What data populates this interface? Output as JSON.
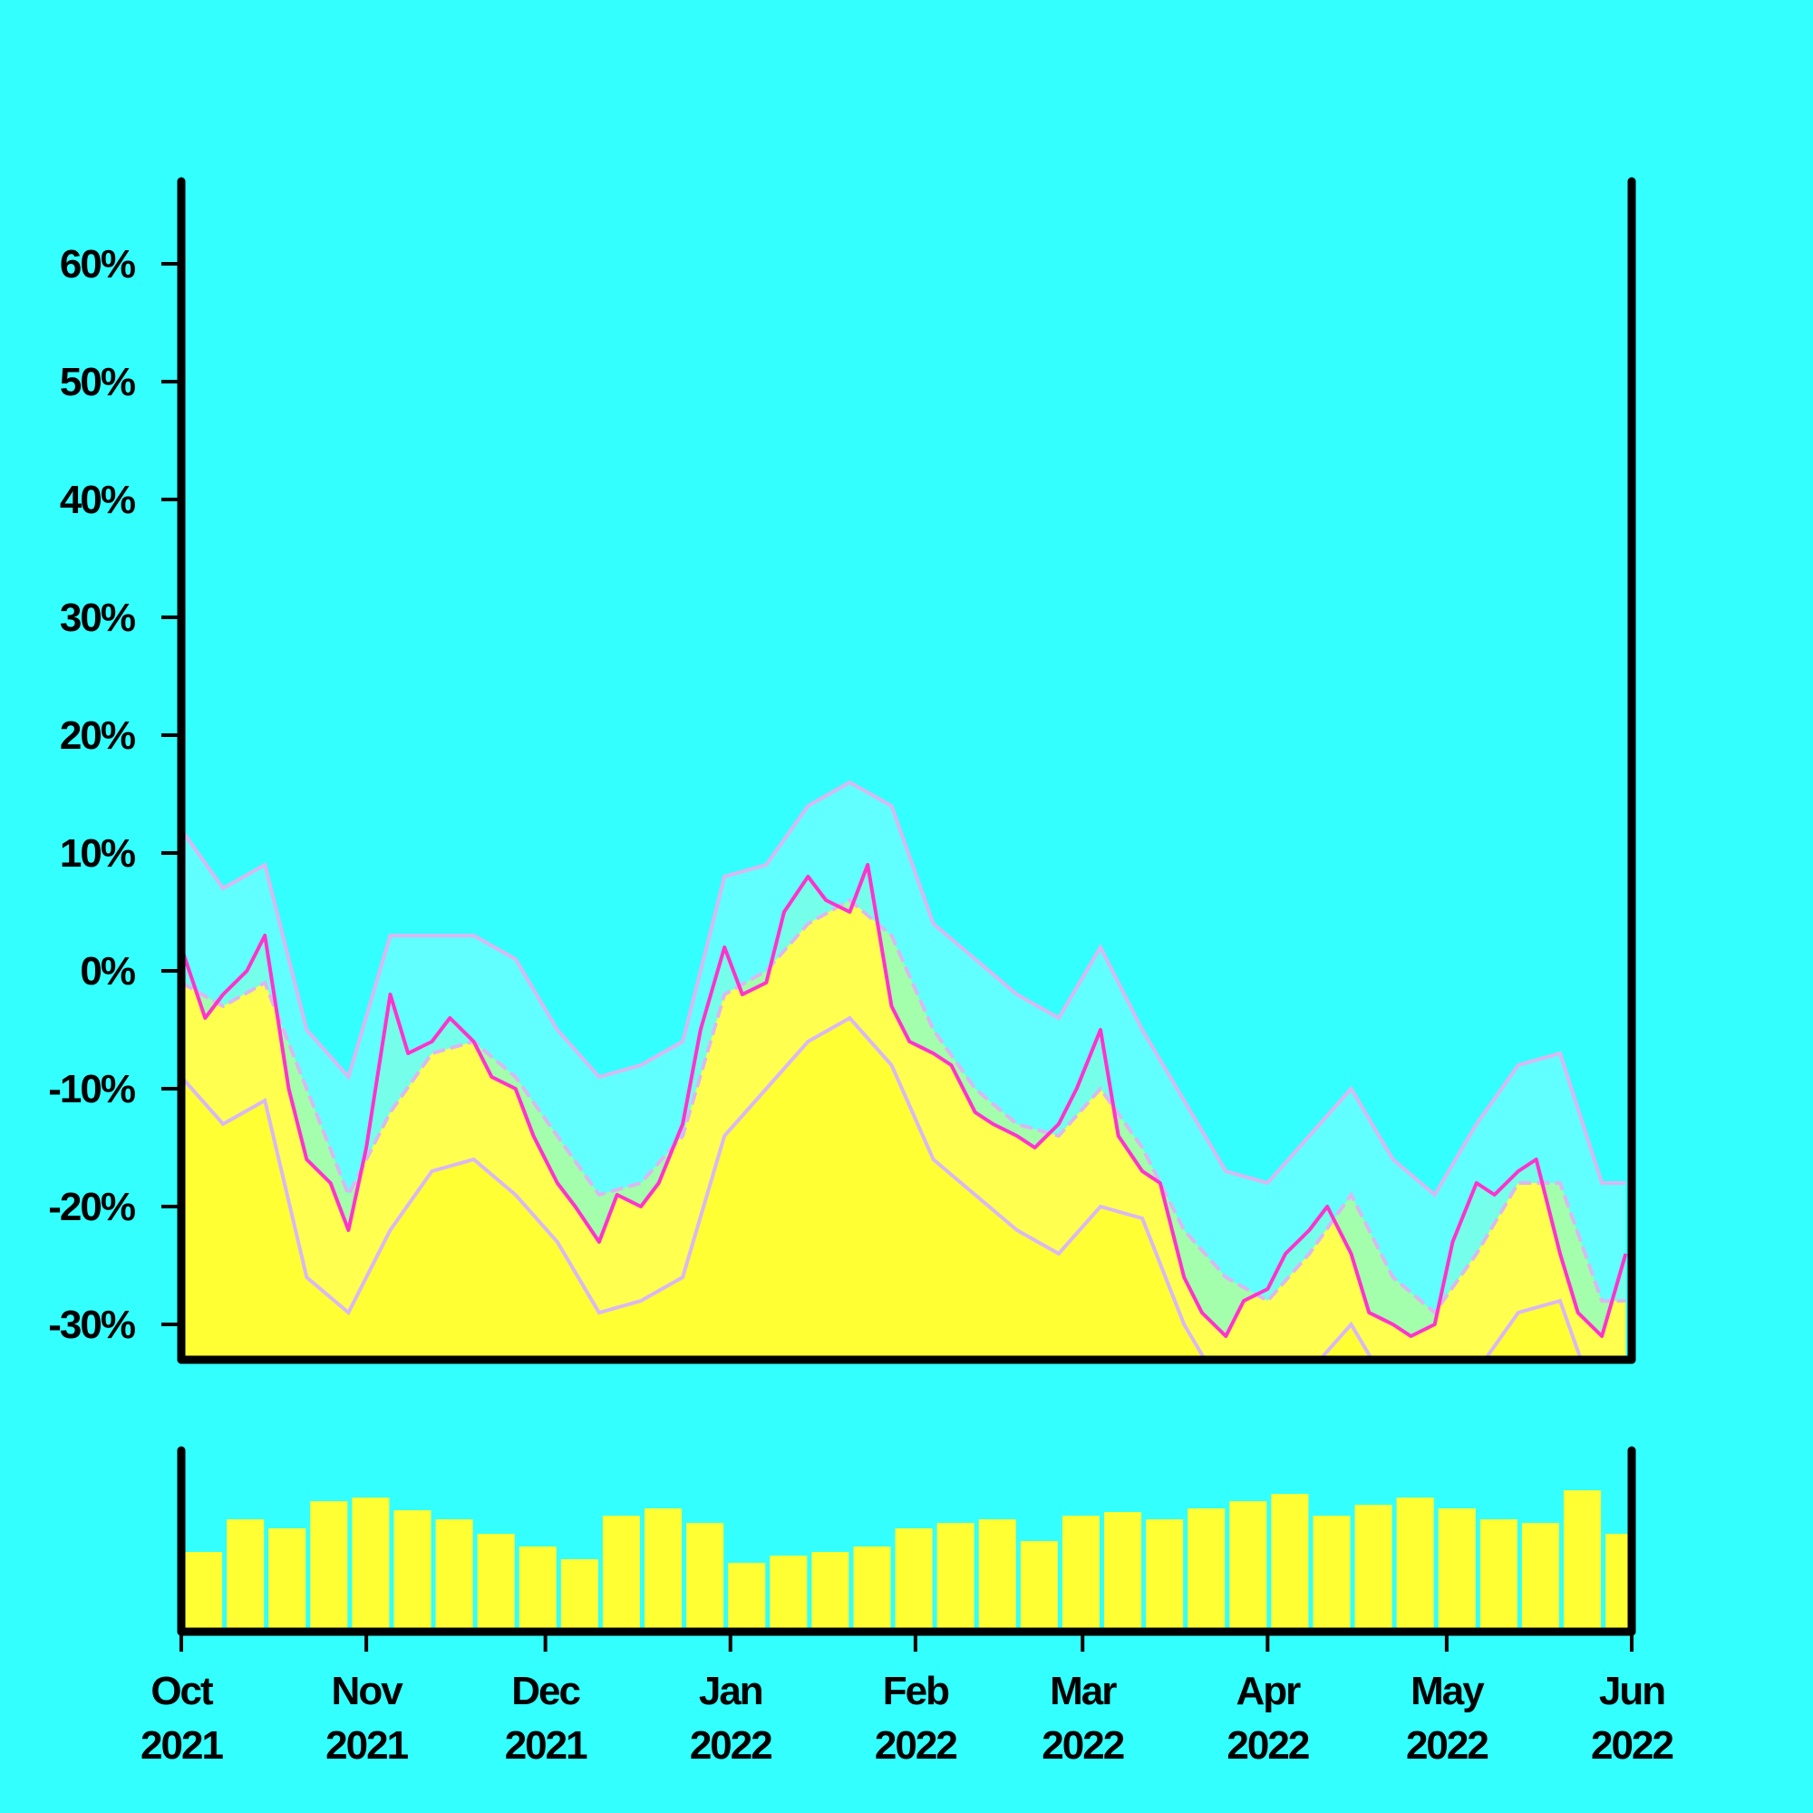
{
  "colors": {
    "background": "#33ffff",
    "axis": "#000000",
    "price_line": "#ff33cc",
    "band_lines": "#d9b8f2",
    "area_fill": "#ffff33",
    "area_band_fill": "#ffff66",
    "band_fill": "#66ffff",
    "volume_bars": "#ffff33"
  },
  "chart_data": [
    {
      "type": "area",
      "title": "",
      "xlabel": "",
      "ylabel": "",
      "grid": false,
      "y_unit": "%",
      "ylim": [
        -33,
        67
      ],
      "yticks": [
        60,
        50,
        40,
        30,
        20,
        10,
        0,
        -10,
        -20,
        -30
      ],
      "ytick_labels": [
        "60%",
        "50%",
        "40%",
        "30%",
        "20%",
        "10%",
        "0%",
        "-10%",
        "-20%",
        "-30%"
      ],
      "xlim": [
        "2021-10-01",
        "2022-06-01"
      ],
      "x_ticks": [
        {
          "date": "2021-10-01",
          "month": "Oct",
          "year": "2021"
        },
        {
          "date": "2021-11-01",
          "month": "Nov",
          "year": "2021"
        },
        {
          "date": "2021-12-01",
          "month": "Dec",
          "year": "2021"
        },
        {
          "date": "2022-01-01",
          "month": "Jan",
          "year": "2022"
        },
        {
          "date": "2022-02-01",
          "month": "Feb",
          "year": "2022"
        },
        {
          "date": "2022-03-01",
          "month": "Mar",
          "year": "2022"
        },
        {
          "date": "2022-04-01",
          "month": "Apr",
          "year": "2022"
        },
        {
          "date": "2022-05-01",
          "month": "May",
          "year": "2022"
        },
        {
          "date": "2022-06-01",
          "month": "Jun",
          "year": "2022"
        }
      ],
      "series": [
        {
          "role": "value",
          "points": [
            [
              "2021-10-01",
              2
            ],
            [
              "2021-10-05",
              -4
            ],
            [
              "2021-10-08",
              -2
            ],
            [
              "2021-10-12",
              0
            ],
            [
              "2021-10-15",
              3
            ],
            [
              "2021-10-19",
              -10
            ],
            [
              "2021-10-22",
              -16
            ],
            [
              "2021-10-26",
              -18
            ],
            [
              "2021-10-29",
              -22
            ],
            [
              "2021-11-01",
              -15
            ],
            [
              "2021-11-05",
              -2
            ],
            [
              "2021-11-08",
              -7
            ],
            [
              "2021-11-12",
              -6
            ],
            [
              "2021-11-15",
              -4
            ],
            [
              "2021-11-19",
              -6
            ],
            [
              "2021-11-22",
              -9
            ],
            [
              "2021-11-26",
              -10
            ],
            [
              "2021-11-29",
              -14
            ],
            [
              "2021-12-03",
              -18
            ],
            [
              "2021-12-06",
              -20
            ],
            [
              "2021-12-10",
              -23
            ],
            [
              "2021-12-13",
              -19
            ],
            [
              "2021-12-17",
              -20
            ],
            [
              "2021-12-20",
              -18
            ],
            [
              "2021-12-24",
              -13
            ],
            [
              "2021-12-27",
              -5
            ],
            [
              "2021-12-31",
              2
            ],
            [
              "2022-01-03",
              -2
            ],
            [
              "2022-01-07",
              -1
            ],
            [
              "2022-01-10",
              5
            ],
            [
              "2022-01-14",
              8
            ],
            [
              "2022-01-17",
              6
            ],
            [
              "2022-01-21",
              5
            ],
            [
              "2022-01-24",
              9
            ],
            [
              "2022-01-28",
              -3
            ],
            [
              "2022-01-31",
              -6
            ],
            [
              "2022-02-04",
              -7
            ],
            [
              "2022-02-07",
              -8
            ],
            [
              "2022-02-11",
              -12
            ],
            [
              "2022-02-14",
              -13
            ],
            [
              "2022-02-18",
              -14
            ],
            [
              "2022-02-21",
              -15
            ],
            [
              "2022-02-25",
              -13
            ],
            [
              "2022-02-28",
              -10
            ],
            [
              "2022-03-04",
              -5
            ],
            [
              "2022-03-07",
              -14
            ],
            [
              "2022-03-11",
              -17
            ],
            [
              "2022-03-14",
              -18
            ],
            [
              "2022-03-18",
              -26
            ],
            [
              "2022-03-21",
              -29
            ],
            [
              "2022-03-25",
              -31
            ],
            [
              "2022-03-28",
              -28
            ],
            [
              "2022-04-01",
              -27
            ],
            [
              "2022-04-04",
              -24
            ],
            [
              "2022-04-08",
              -22
            ],
            [
              "2022-04-11",
              -20
            ],
            [
              "2022-04-15",
              -24
            ],
            [
              "2022-04-18",
              -29
            ],
            [
              "2022-04-22",
              -30
            ],
            [
              "2022-04-25",
              -31
            ],
            [
              "2022-04-29",
              -30
            ],
            [
              "2022-05-02",
              -23
            ],
            [
              "2022-05-06",
              -18
            ],
            [
              "2022-05-09",
              -19
            ],
            [
              "2022-05-13",
              -17
            ],
            [
              "2022-05-16",
              -16
            ],
            [
              "2022-05-20",
              -24
            ],
            [
              "2022-05-23",
              -29
            ],
            [
              "2022-05-27",
              -31
            ],
            [
              "2022-05-31",
              -24
            ]
          ]
        },
        {
          "role": "moving-average",
          "points": [
            [
              "2021-10-01",
              -1
            ],
            [
              "2021-10-08",
              -3
            ],
            [
              "2021-10-15",
              -1
            ],
            [
              "2021-10-22",
              -10
            ],
            [
              "2021-10-29",
              -19
            ],
            [
              "2021-11-05",
              -12
            ],
            [
              "2021-11-12",
              -7
            ],
            [
              "2021-11-19",
              -6
            ],
            [
              "2021-11-26",
              -9
            ],
            [
              "2021-12-03",
              -14
            ],
            [
              "2021-12-10",
              -19
            ],
            [
              "2021-12-17",
              -18
            ],
            [
              "2021-12-24",
              -14
            ],
            [
              "2021-12-31",
              -2
            ],
            [
              "2022-01-07",
              0
            ],
            [
              "2022-01-14",
              4
            ],
            [
              "2022-01-21",
              6
            ],
            [
              "2022-01-28",
              3
            ],
            [
              "2022-02-04",
              -5
            ],
            [
              "2022-02-11",
              -10
            ],
            [
              "2022-02-18",
              -13
            ],
            [
              "2022-02-25",
              -14
            ],
            [
              "2022-03-04",
              -10
            ],
            [
              "2022-03-11",
              -15
            ],
            [
              "2022-03-18",
              -22
            ],
            [
              "2022-03-25",
              -26
            ],
            [
              "2022-04-01",
              -28
            ],
            [
              "2022-04-08",
              -24
            ],
            [
              "2022-04-15",
              -19
            ],
            [
              "2022-04-22",
              -26
            ],
            [
              "2022-04-29",
              -29
            ],
            [
              "2022-05-06",
              -24
            ],
            [
              "2022-05-13",
              -18
            ],
            [
              "2022-05-20",
              -18
            ],
            [
              "2022-05-27",
              -28
            ],
            [
              "2022-05-31",
              -28
            ]
          ]
        },
        {
          "role": "upper-band",
          "points": [
            [
              "2021-10-01",
              12
            ],
            [
              "2021-10-08",
              7
            ],
            [
              "2021-10-15",
              9
            ],
            [
              "2021-10-22",
              -5
            ],
            [
              "2021-10-29",
              -9
            ],
            [
              "2021-11-05",
              3
            ],
            [
              "2021-11-12",
              3
            ],
            [
              "2021-11-19",
              3
            ],
            [
              "2021-11-26",
              1
            ],
            [
              "2021-12-03",
              -5
            ],
            [
              "2021-12-10",
              -9
            ],
            [
              "2021-12-17",
              -8
            ],
            [
              "2021-12-24",
              -6
            ],
            [
              "2021-12-31",
              8
            ],
            [
              "2022-01-07",
              9
            ],
            [
              "2022-01-14",
              14
            ],
            [
              "2022-01-21",
              16
            ],
            [
              "2022-01-28",
              14
            ],
            [
              "2022-02-04",
              4
            ],
            [
              "2022-02-11",
              1
            ],
            [
              "2022-02-18",
              -2
            ],
            [
              "2022-02-25",
              -4
            ],
            [
              "2022-03-04",
              2
            ],
            [
              "2022-03-11",
              -5
            ],
            [
              "2022-03-18",
              -11
            ],
            [
              "2022-03-25",
              -17
            ],
            [
              "2022-04-01",
              -18
            ],
            [
              "2022-04-08",
              -14
            ],
            [
              "2022-04-15",
              -10
            ],
            [
              "2022-04-22",
              -16
            ],
            [
              "2022-04-29",
              -19
            ],
            [
              "2022-05-06",
              -13
            ],
            [
              "2022-05-13",
              -8
            ],
            [
              "2022-05-20",
              -7
            ],
            [
              "2022-05-27",
              -18
            ],
            [
              "2022-05-31",
              -18
            ]
          ]
        },
        {
          "role": "lower-band",
          "points": [
            [
              "2021-10-01",
              -9
            ],
            [
              "2021-10-08",
              -13
            ],
            [
              "2021-10-15",
              -11
            ],
            [
              "2021-10-22",
              -26
            ],
            [
              "2021-10-29",
              -29
            ],
            [
              "2021-11-05",
              -22
            ],
            [
              "2021-11-12",
              -17
            ],
            [
              "2021-11-19",
              -16
            ],
            [
              "2021-11-26",
              -19
            ],
            [
              "2021-12-03",
              -23
            ],
            [
              "2021-12-10",
              -29
            ],
            [
              "2021-12-17",
              -28
            ],
            [
              "2021-12-24",
              -26
            ],
            [
              "2021-12-31",
              -14
            ],
            [
              "2022-01-07",
              -10
            ],
            [
              "2022-01-14",
              -6
            ],
            [
              "2022-01-21",
              -4
            ],
            [
              "2022-01-28",
              -8
            ],
            [
              "2022-02-04",
              -16
            ],
            [
              "2022-02-11",
              -19
            ],
            [
              "2022-02-18",
              -22
            ],
            [
              "2022-02-25",
              -24
            ],
            [
              "2022-03-04",
              -20
            ],
            [
              "2022-03-11",
              -21
            ],
            [
              "2022-03-18",
              -30
            ],
            [
              "2022-03-25",
              -36
            ],
            [
              "2022-04-01",
              -38
            ],
            [
              "2022-04-08",
              -34
            ],
            [
              "2022-04-15",
              -30
            ],
            [
              "2022-04-22",
              -36
            ],
            [
              "2022-04-29",
              -39
            ],
            [
              "2022-05-06",
              -34
            ],
            [
              "2022-05-13",
              -29
            ],
            [
              "2022-05-20",
              -28
            ],
            [
              "2022-05-27",
              -38
            ],
            [
              "2022-05-31",
              -38
            ]
          ]
        }
      ]
    },
    {
      "type": "bar",
      "role": "volume-panel",
      "title": "",
      "xlabel": "",
      "ylabel": "",
      "axis_labels_shown": false,
      "ylim": [
        0,
        100
      ],
      "xlim": [
        "2021-10-01",
        "2022-06-01"
      ],
      "weekly_values": [
        {
          "week_of": "2021-10-01",
          "value": 42
        },
        {
          "week_of": "2021-10-08",
          "value": 60
        },
        {
          "week_of": "2021-10-15",
          "value": 55
        },
        {
          "week_of": "2021-10-22",
          "value": 70
        },
        {
          "week_of": "2021-10-29",
          "value": 72
        },
        {
          "week_of": "2021-11-05",
          "value": 65
        },
        {
          "week_of": "2021-11-12",
          "value": 60
        },
        {
          "week_of": "2021-11-19",
          "value": 52
        },
        {
          "week_of": "2021-11-26",
          "value": 45
        },
        {
          "week_of": "2021-12-03",
          "value": 38
        },
        {
          "week_of": "2021-12-10",
          "value": 62
        },
        {
          "week_of": "2021-12-17",
          "value": 66
        },
        {
          "week_of": "2021-12-24",
          "value": 58
        },
        {
          "week_of": "2021-12-31",
          "value": 36
        },
        {
          "week_of": "2022-01-07",
          "value": 40
        },
        {
          "week_of": "2022-01-14",
          "value": 42
        },
        {
          "week_of": "2022-01-21",
          "value": 45
        },
        {
          "week_of": "2022-01-28",
          "value": 55
        },
        {
          "week_of": "2022-02-04",
          "value": 58
        },
        {
          "week_of": "2022-02-11",
          "value": 60
        },
        {
          "week_of": "2022-02-18",
          "value": 48
        },
        {
          "week_of": "2022-02-25",
          "value": 62
        },
        {
          "week_of": "2022-03-04",
          "value": 64
        },
        {
          "week_of": "2022-03-11",
          "value": 60
        },
        {
          "week_of": "2022-03-18",
          "value": 66
        },
        {
          "week_of": "2022-03-25",
          "value": 70
        },
        {
          "week_of": "2022-04-01",
          "value": 74
        },
        {
          "week_of": "2022-04-08",
          "value": 62
        },
        {
          "week_of": "2022-04-15",
          "value": 68
        },
        {
          "week_of": "2022-04-22",
          "value": 72
        },
        {
          "week_of": "2022-04-29",
          "value": 66
        },
        {
          "week_of": "2022-05-06",
          "value": 60
        },
        {
          "week_of": "2022-05-13",
          "value": 58
        },
        {
          "week_of": "2022-05-20",
          "value": 76
        },
        {
          "week_of": "2022-05-27",
          "value": 52
        }
      ]
    }
  ]
}
